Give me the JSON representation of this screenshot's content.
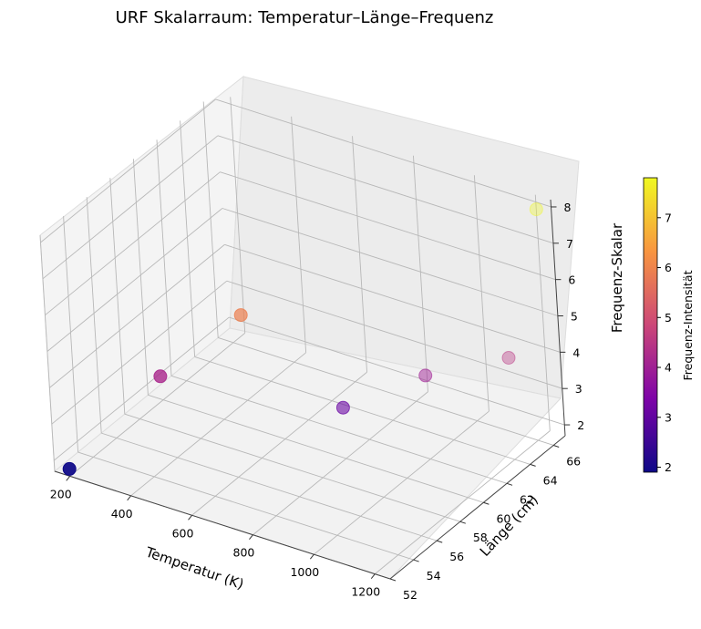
{
  "chart_data": {
    "type": "scatter",
    "projection": "3d",
    "title": "URF Skalarraum: Temperatur–Länge–Frequenz",
    "xlabel": "Temperatur (K)",
    "ylabel": "Länge (cm)",
    "zlabel": "Frequenz-Skalar",
    "xlim": [
      150,
      1250
    ],
    "ylim": [
      52,
      67
    ],
    "zlim": [
      1.7,
      8.2
    ],
    "xticks": [
      200,
      400,
      600,
      800,
      1000,
      1200
    ],
    "yticks": [
      52,
      54,
      56,
      58,
      60,
      62,
      64,
      66
    ],
    "zticks": [
      2,
      3,
      4,
      5,
      6,
      7,
      8
    ],
    "grid": true,
    "colormap": "plasma",
    "points": [
      {
        "x": 200,
        "y": 52,
        "z": 1.9
      },
      {
        "x": 400,
        "y": 55,
        "z": 4.2
      },
      {
        "x": 600,
        "y": 57,
        "z": 5.9
      },
      {
        "x": 800,
        "y": 60,
        "z": 3.1
      },
      {
        "x": 1000,
        "y": 62,
        "z": 4.0
      },
      {
        "x": 1200,
        "y": 64,
        "z": 4.5
      },
      {
        "x": 1200,
        "y": 67,
        "z": 7.8
      }
    ],
    "colorbar": {
      "label": "Frequenz-Intensität",
      "min": 1.9,
      "max": 7.8,
      "ticks": [
        2,
        3,
        4,
        5,
        6,
        7
      ]
    }
  }
}
